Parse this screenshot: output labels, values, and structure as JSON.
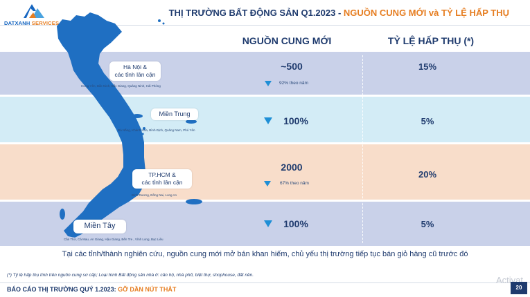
{
  "brand": {
    "name_main": "DATXANH",
    "name_accent": " SERVICES"
  },
  "title": {
    "main": "THỊ TRƯỜNG BẤT ĐỘNG SẢN Q1.2023 - ",
    "accent": "NGUỒN CUNG MỚI và TỶ LỆ HẤP THỤ"
  },
  "columns": {
    "supply": "NGUỒN CUNG MỚI",
    "absorption": "TỶ LỆ HẤP THỤ (*)"
  },
  "regions": [
    {
      "name_lines": [
        "Hà Nội &",
        "các tỉnh lân cận"
      ],
      "provinces": "Hưng Yên, Bắc Ninh, Bắc Giang, Quảng Ninh, Hải Phòng",
      "supply": "~500",
      "change": "92% theo năm",
      "trend": "down",
      "absorption": "15%",
      "band_color": "#c9d1e9"
    },
    {
      "name_lines": [
        "Miền Trung"
      ],
      "provinces": "Đà Nẵng, Khánh Hòa, Bình Định, Quảng Nam, Phú Yên",
      "supply": "100%",
      "change": "",
      "trend": "down",
      "absorption": "5%",
      "band_color": "#d3ecf6"
    },
    {
      "name_lines": [
        "TP.HCM &",
        "các tỉnh lân cận"
      ],
      "provinces": "Bình Dương, Đồng Nai, Long An",
      "supply": "2000",
      "change": "67% theo năm",
      "trend": "down",
      "absorption": "20%",
      "band_color": "#f8ddca"
    },
    {
      "name_lines": [
        "Miền Tây"
      ],
      "provinces": "Cần Thơ, Cà Mau, An Giang, Hậu Giang, Bến Tre , Vĩnh Long, Bạc Liêu",
      "supply": "100%",
      "change": "",
      "trend": "down",
      "absorption": "5%",
      "band_color": "#c9d1e9"
    }
  ],
  "summary": "Tại các tỉnh/thành nghiên cứu, nguồn cung mới mở bán khan hiếm, chủ yếu thị trường tiếp tục bán giỏ hàng cũ trước đó",
  "footnote": "(*) Tỷ lệ hấp thụ tính trên nguồn cung sơ cấp; Loại hình Bất động sản nhà ở: căn hộ, nhà phố, biệt thự, shophouse, đất nền.",
  "footer": {
    "main": "BÁO CÁO THỊ TRƯỜNG QUÝ 1.2023: ",
    "accent": "GỠ DẦN NÚT THẮT"
  },
  "page_number": "20",
  "watermark": "Activat",
  "colors": {
    "navy": "#1f3b6e",
    "orange": "#e67e22",
    "map_blue": "#1f6fc2",
    "arrow_blue": "#1f8fd6"
  }
}
